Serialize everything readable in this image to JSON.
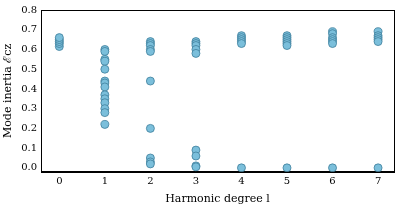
{
  "chart_data": {
    "type": "scatter",
    "x_label": "Harmonic degree l",
    "y_label": "Mode inertia ℰcz",
    "x": [
      0,
      0,
      0,
      0,
      0,
      1,
      1,
      1,
      1,
      1,
      1,
      1,
      1,
      1,
      1,
      1,
      1,
      1,
      1,
      2,
      2,
      2,
      2,
      2,
      2,
      2,
      2,
      2,
      2,
      3,
      3,
      3,
      3,
      3,
      3,
      3,
      3,
      3,
      4,
      4,
      4,
      4,
      4,
      4,
      5,
      5,
      5,
      5,
      5,
      5,
      5,
      6,
      6,
      6,
      6,
      6,
      6,
      6,
      7,
      7,
      7,
      7,
      7,
      7
    ],
    "values": [
      0.615,
      0.63,
      0.64,
      0.65,
      0.66,
      0.6,
      0.59,
      0.55,
      0.54,
      0.5,
      0.44,
      0.43,
      0.41,
      0.37,
      0.35,
      0.33,
      0.3,
      0.28,
      0.22,
      0.64,
      0.63,
      0.62,
      0.6,
      0.59,
      0.44,
      0.2,
      0.05,
      0.03,
      0.02,
      0.64,
      0.63,
      0.62,
      0.6,
      0.58,
      0.09,
      0.06,
      0.01,
      0.005,
      0.67,
      0.66,
      0.65,
      0.64,
      0.63,
      0.0,
      0.67,
      0.66,
      0.65,
      0.64,
      0.63,
      0.62,
      0.0,
      0.69,
      0.68,
      0.66,
      0.65,
      0.64,
      0.63,
      0.0,
      0.69,
      0.67,
      0.66,
      0.65,
      0.64,
      0.0
    ],
    "color": "#7bbfdb",
    "marker": "circle",
    "xlim": [
      -0.4,
      7.35
    ],
    "xticks": [
      0,
      1,
      2,
      3,
      4,
      5,
      6,
      7
    ],
    "ylim": [
      -0.02,
      0.8
    ],
    "yticks": [
      {
        "value": 0,
        "label": "0.0"
      },
      0.1,
      0.2,
      0.3,
      0.4,
      0.5,
      0.6,
      0.7,
      0.8
    ],
    "grid": false
  }
}
